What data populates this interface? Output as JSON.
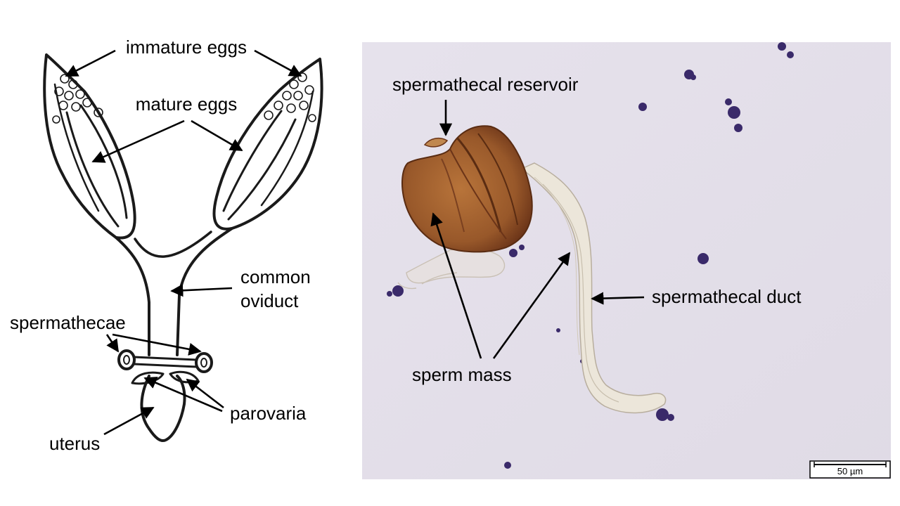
{
  "drawing": {
    "labels": {
      "immature_eggs": "immature eggs",
      "mature_eggs": "mature eggs",
      "common": "common",
      "oviduct": "oviduct",
      "spermathecae": "spermathecae",
      "parovaria": "parovaria",
      "uterus": "uterus"
    }
  },
  "micrograph": {
    "labels": {
      "spermathecal_reservoir": "spermathecal reservoir",
      "spermathecal_duct": "spermathecal duct",
      "sperm_mass": "sperm mass"
    },
    "scale_bar": {
      "label": "50 µm"
    },
    "colors": {
      "background": "#e4e0ea",
      "reservoir": "#a0602a",
      "reservoir_dark": "#6b3418",
      "duct": "#efe8dc",
      "stain": "#3a2a6a"
    }
  }
}
